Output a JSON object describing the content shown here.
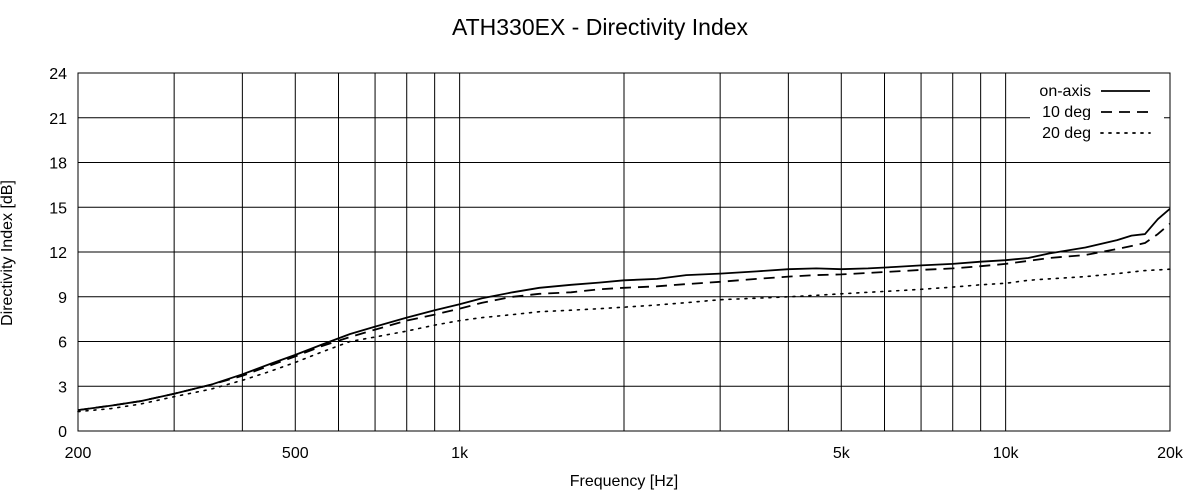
{
  "chart_data": {
    "type": "line",
    "title": "ATH330EX - Directivity Index",
    "xlabel": "Frequency [Hz]",
    "ylabel": "Directivity Index [dB]",
    "x_scale": "log",
    "xlim": [
      200,
      20000
    ],
    "ylim": [
      0,
      24
    ],
    "grid": true,
    "legend_position": "top-right",
    "x_ticks": [
      {
        "value": 200,
        "label": "200"
      },
      {
        "value": 500,
        "label": "500"
      },
      {
        "value": 1000,
        "label": "1k"
      },
      {
        "value": 5000,
        "label": "5k"
      },
      {
        "value": 10000,
        "label": "10k"
      },
      {
        "value": 20000,
        "label": "20k"
      }
    ],
    "y_ticks": [
      {
        "value": 0,
        "label": "0"
      },
      {
        "value": 3,
        "label": "3"
      },
      {
        "value": 6,
        "label": "6"
      },
      {
        "value": 9,
        "label": "9"
      },
      {
        "value": 12,
        "label": "12"
      },
      {
        "value": 15,
        "label": "15"
      },
      {
        "value": 18,
        "label": "18"
      },
      {
        "value": 21,
        "label": "21"
      },
      {
        "value": 24,
        "label": "24"
      }
    ],
    "x_grid": [
      200,
      300,
      400,
      500,
      600,
      700,
      800,
      900,
      1000,
      2000,
      3000,
      4000,
      5000,
      6000,
      7000,
      8000,
      9000,
      10000,
      20000
    ],
    "series": [
      {
        "name": "on-axis",
        "style": "solid",
        "color": "#000000",
        "x": [
          200,
          230,
          260,
          300,
          350,
          400,
          450,
          500,
          560,
          630,
          700,
          800,
          900,
          1000,
          1100,
          1250,
          1400,
          1600,
          1800,
          2000,
          2300,
          2600,
          3000,
          3500,
          4000,
          4500,
          5000,
          5600,
          6300,
          7000,
          8000,
          9000,
          10000,
          11000,
          12000,
          14000,
          16000,
          17000,
          18000,
          19000,
          20000
        ],
        "y": [
          1.4,
          1.7,
          2.0,
          2.5,
          3.1,
          3.8,
          4.5,
          5.1,
          5.8,
          6.5,
          7.0,
          7.6,
          8.1,
          8.5,
          8.9,
          9.3,
          9.6,
          9.8,
          9.95,
          10.1,
          10.2,
          10.45,
          10.55,
          10.7,
          10.85,
          10.9,
          10.85,
          10.9,
          11.0,
          11.1,
          11.2,
          11.35,
          11.45,
          11.6,
          11.9,
          12.3,
          12.8,
          13.1,
          13.2,
          14.2,
          14.9
        ]
      },
      {
        "name": "10 deg",
        "style": "dashed",
        "color": "#000000",
        "x": [
          200,
          230,
          260,
          300,
          350,
          400,
          450,
          500,
          560,
          630,
          700,
          800,
          900,
          1000,
          1100,
          1250,
          1400,
          1600,
          1800,
          2000,
          2300,
          2600,
          3000,
          3500,
          4000,
          4500,
          5000,
          5600,
          6300,
          7000,
          8000,
          9000,
          10000,
          11000,
          12000,
          14000,
          16000,
          17000,
          18000,
          19000,
          20000
        ],
        "y": [
          1.4,
          1.7,
          2.0,
          2.5,
          3.1,
          3.7,
          4.4,
          5.0,
          5.7,
          6.3,
          6.8,
          7.4,
          7.8,
          8.2,
          8.6,
          9.0,
          9.2,
          9.3,
          9.5,
          9.6,
          9.7,
          9.85,
          10.0,
          10.2,
          10.35,
          10.45,
          10.5,
          10.6,
          10.7,
          10.8,
          10.9,
          11.05,
          11.2,
          11.4,
          11.6,
          11.8,
          12.2,
          12.4,
          12.6,
          13.2,
          13.9
        ]
      },
      {
        "name": "20 deg",
        "style": "dotted",
        "color": "#000000",
        "x": [
          200,
          230,
          260,
          300,
          350,
          400,
          450,
          500,
          560,
          630,
          700,
          800,
          900,
          1000,
          1100,
          1250,
          1400,
          1600,
          1800,
          2000,
          2300,
          2600,
          3000,
          3500,
          4000,
          4500,
          5000,
          5600,
          6300,
          7000,
          8000,
          9000,
          10000,
          11000,
          12000,
          14000,
          16000,
          18000,
          20000
        ],
        "y": [
          1.3,
          1.5,
          1.8,
          2.3,
          2.8,
          3.4,
          4.0,
          4.6,
          5.3,
          6.0,
          6.3,
          6.7,
          7.1,
          7.4,
          7.6,
          7.8,
          8.0,
          8.1,
          8.2,
          8.3,
          8.45,
          8.6,
          8.8,
          8.9,
          9.0,
          9.1,
          9.2,
          9.3,
          9.4,
          9.5,
          9.65,
          9.8,
          9.9,
          10.1,
          10.2,
          10.35,
          10.55,
          10.75,
          10.85
        ]
      }
    ]
  }
}
